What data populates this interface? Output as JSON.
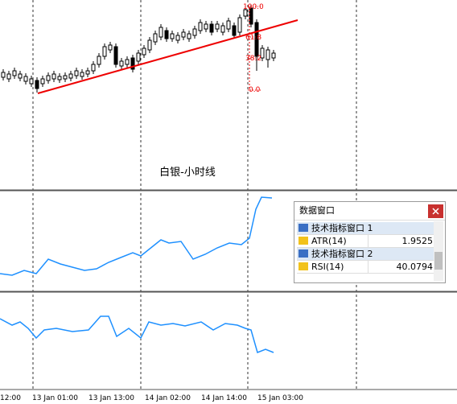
{
  "chart": {
    "title": "白银-小时线",
    "fibo_levels": [
      "100.0",
      "61.8",
      "38.2",
      "0.0"
    ],
    "time_labels": [
      "12:00",
      "13 Jan 01:00",
      "13 Jan 13:00",
      "14 Jan 02:00",
      "14 Jan 14:00",
      "15 Jan 03:00"
    ]
  },
  "data_window": {
    "title": "数据窗口",
    "groups": [
      {
        "name": "技术指标窗口 1",
        "rows": [
          {
            "label": "ATR(14)",
            "value": "1.9525"
          }
        ]
      },
      {
        "name": "技术指标窗口 2",
        "rows": [
          {
            "label": "RSI(14)",
            "value": "40.0794"
          }
        ]
      }
    ]
  }
}
